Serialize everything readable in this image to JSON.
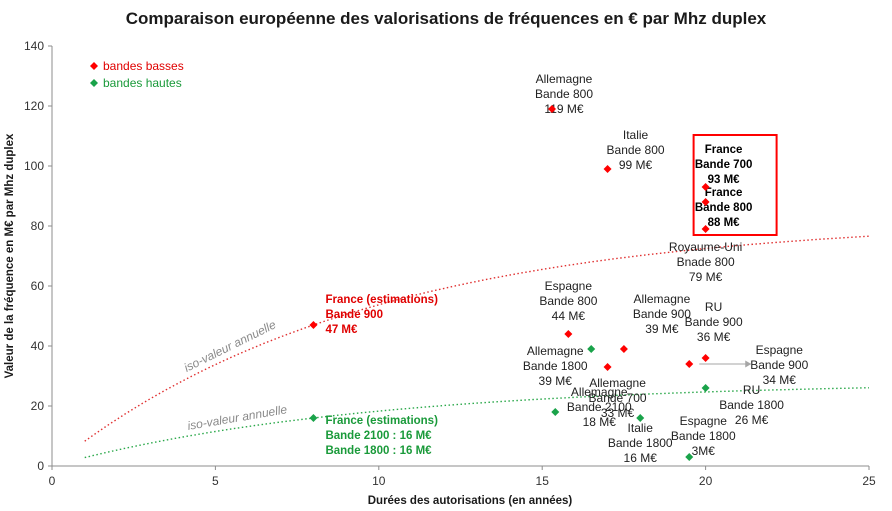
{
  "chart_data": {
    "type": "scatter",
    "title": "Comparaison européenne des valorisations de fréquences en € par Mhz duplex",
    "xlabel": "Durées des autorisations  (en années)",
    "ylabel": "Valeur de la fréquence en M€ par Mhz duplex",
    "xlim": [
      0,
      25
    ],
    "ylim": [
      0,
      140
    ],
    "xticks": [
      "0",
      "5",
      "10",
      "15",
      "20",
      "25"
    ],
    "yticks": [
      "0",
      "20",
      "40",
      "60",
      "80",
      "100",
      "120",
      "140"
    ],
    "grid": false,
    "legend_position": "top-left",
    "colors": {
      "basses": "#ff0000",
      "hautes": "#1aa34a",
      "curve_basses": "#e03030",
      "curve_hautes": "#2aa84a",
      "box": "#ff0000",
      "arrow": "#a6a6a6",
      "iso_text": "#8a8a8a"
    },
    "series": [
      {
        "name": "bandes basses",
        "color": "#ff0000",
        "points": [
          {
            "x": 8.0,
            "y": 47,
            "label": [
              "France (estimations)",
              "Bande 900",
              "47 M€"
            ],
            "style": "red"
          },
          {
            "x": 15.3,
            "y": 119,
            "label": [
              "Allemagne",
              "Bande 800",
              "119 M€"
            ],
            "style": "plain"
          },
          {
            "x": 17.0,
            "y": 99,
            "label": [
              "Italie",
              "Bande 800",
              "99 M€"
            ],
            "style": "plain"
          },
          {
            "x": 20.0,
            "y": 93,
            "label": [
              "France",
              "Bande 700",
              "93 M€"
            ],
            "style": "box"
          },
          {
            "x": 20.0,
            "y": 88,
            "label": [
              "France",
              "Bande 800",
              "88 M€"
            ],
            "style": "box"
          },
          {
            "x": 20.0,
            "y": 79,
            "label": [
              "Royaume-Uni",
              "Bnade 800",
              "79 M€"
            ],
            "style": "plain"
          },
          {
            "x": 15.8,
            "y": 44,
            "label": [
              "Espagne",
              "Bande 800",
              "44 M€"
            ],
            "style": "plain"
          },
          {
            "x": 17.5,
            "y": 39,
            "label": [
              "Allemagne",
              "Bande 900",
              "39 M€"
            ],
            "style": "plain"
          },
          {
            "x": 20.0,
            "y": 36,
            "label": [
              "RU",
              "Bande 900",
              "36 M€"
            ],
            "style": "plain"
          },
          {
            "x": 19.5,
            "y": 34,
            "label": [
              "Espagne",
              "Bande 900",
              "34 M€"
            ],
            "style": "plain"
          },
          {
            "x": 17.0,
            "y": 33,
            "label": [
              "Allemagne",
              "Bande 700",
              "33 M€"
            ],
            "style": "plain"
          }
        ]
      },
      {
        "name": "bandes hautes",
        "color": "#1aa34a",
        "points": [
          {
            "x": 8.0,
            "y": 16,
            "label": [
              "France (estimations)",
              "Bande 2100 : 16 M€",
              "Bande 1800 : 16 M€"
            ],
            "style": "green"
          },
          {
            "x": 16.5,
            "y": 39,
            "label": [
              "Allemagne",
              "Bande 1800",
              "39 M€"
            ],
            "style": "plain"
          },
          {
            "x": 15.4,
            "y": 18,
            "label": [
              "Allemagne",
              "Bande 2100",
              "18 M€"
            ],
            "style": "plain"
          },
          {
            "x": 18.0,
            "y": 16,
            "label": [
              "Italie",
              "Bande 1800",
              "16 M€"
            ],
            "style": "plain"
          },
          {
            "x": 20.0,
            "y": 26,
            "label": [
              "RU",
              "Bande 1800",
              "26 M€"
            ],
            "style": "plain"
          },
          {
            "x": 19.5,
            "y": 3,
            "label": [
              "Espagne",
              "Bande 1800",
              "3M€"
            ],
            "style": "plain"
          }
        ]
      }
    ],
    "curves": [
      {
        "series": "bandes basses",
        "label": "iso-valeur annuelle",
        "x_start": 1,
        "x_end": 25,
        "through": {
          "x": 8,
          "y": 47
        }
      },
      {
        "series": "bandes hautes",
        "label": "iso-valeur annuelle",
        "x_start": 1,
        "x_end": 25,
        "through": {
          "x": 8,
          "y": 16
        }
      }
    ]
  }
}
